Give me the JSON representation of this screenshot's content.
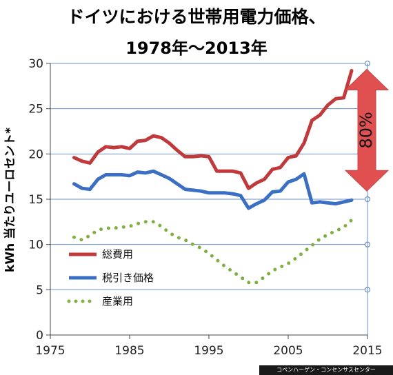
{
  "chart_data": {
    "type": "line",
    "title_line1": "ドイツにおける世帯用電力価格、",
    "title_line2": "1978年～2013年",
    "ylabel": "kWh 当たりユーロセント*",
    "xlim": [
      1975,
      2015
    ],
    "ylim": [
      0,
      30
    ],
    "x_ticks": [
      "1975",
      "1985",
      "1995",
      "2005",
      "2015"
    ],
    "y_ticks": [
      "0",
      "5",
      "10",
      "15",
      "20",
      "25",
      "30"
    ],
    "grid": true,
    "legend_position": "center-left",
    "annotation": {
      "label": "80%",
      "from": 29.2,
      "to": 16.2,
      "color": "#e05050"
    },
    "series": [
      {
        "name": "総費用",
        "color": "#c0393b",
        "style": "solid",
        "x": [
          1978,
          1979,
          1980,
          1981,
          1982,
          1983,
          1984,
          1985,
          1986,
          1987,
          1988,
          1989,
          1990,
          1991,
          1992,
          1993,
          1994,
          1995,
          1996,
          1997,
          1998,
          1999,
          2000,
          2001,
          2002,
          2003,
          2004,
          2005,
          2006,
          2007,
          2008,
          2009,
          2010,
          2011,
          2012,
          2013
        ],
        "values": [
          19.6,
          19.2,
          19.0,
          20.2,
          20.8,
          20.7,
          20.8,
          20.6,
          21.4,
          21.5,
          22.0,
          21.8,
          21.2,
          20.4,
          19.7,
          19.7,
          19.8,
          19.7,
          18.1,
          18.1,
          18.1,
          17.9,
          16.2,
          16.8,
          17.2,
          18.3,
          18.5,
          19.6,
          19.8,
          21.2,
          23.7,
          24.3,
          25.4,
          26.1,
          26.2,
          29.2
        ]
      },
      {
        "name": "税引き価格",
        "color": "#3a6fc4",
        "style": "solid",
        "x": [
          1978,
          1979,
          1980,
          1981,
          1982,
          1983,
          1984,
          1985,
          1986,
          1987,
          1988,
          1989,
          1990,
          1991,
          1992,
          1993,
          1994,
          1995,
          1996,
          1997,
          1998,
          1999,
          2000,
          2001,
          2002,
          2003,
          2004,
          2005,
          2006,
          2007,
          2008,
          2009,
          2010,
          2011,
          2012,
          2013
        ],
        "values": [
          16.7,
          16.2,
          16.1,
          17.2,
          17.7,
          17.7,
          17.7,
          17.6,
          18.0,
          17.9,
          18.1,
          17.7,
          17.3,
          16.7,
          16.1,
          16.0,
          15.9,
          15.7,
          15.7,
          15.7,
          15.6,
          15.4,
          14.0,
          14.5,
          14.9,
          15.8,
          15.9,
          16.9,
          17.2,
          17.8,
          14.6,
          14.7,
          14.6,
          14.5,
          14.7,
          14.9
        ]
      },
      {
        "name": "産業用",
        "color": "#7faf3f",
        "style": "dotted",
        "x": [
          1978,
          1979,
          1980,
          1981,
          1982,
          1983,
          1984,
          1985,
          1986,
          1987,
          1988,
          1989,
          1990,
          1991,
          1992,
          1993,
          1994,
          1995,
          1996,
          1997,
          1998,
          1999,
          2000,
          2001,
          2002,
          2003,
          2004,
          2005,
          2006,
          2007,
          2008,
          2009,
          2010,
          2011,
          2012,
          2013
        ],
        "values": [
          10.8,
          10.5,
          11.0,
          11.6,
          11.8,
          11.8,
          11.9,
          12.0,
          12.3,
          12.5,
          12.5,
          12.0,
          11.3,
          10.8,
          10.5,
          10.0,
          9.6,
          9.0,
          8.3,
          7.6,
          7.0,
          6.4,
          5.8,
          5.8,
          6.4,
          7.1,
          7.5,
          7.9,
          8.5,
          9.2,
          9.9,
          10.6,
          11.1,
          11.5,
          11.9,
          12.7
        ]
      }
    ]
  },
  "footer": {
    "credit": "コペンハーゲン・コンセンサスセンター"
  }
}
